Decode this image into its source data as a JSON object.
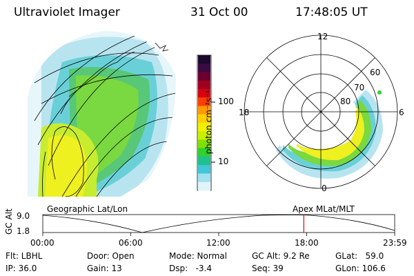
{
  "header": {
    "instrument": "Ultraviolet Imager",
    "date": "31 Oct 00",
    "time": "17:48:05 UT"
  },
  "colorbar": {
    "unit": "photon cm⁻²s⁻¹",
    "ticks": [
      "100",
      "10"
    ],
    "colors": [
      "#1a0a2e",
      "#3a0a40",
      "#6a0030",
      "#a00020",
      "#d80010",
      "#ff4000",
      "#ff9a00",
      "#ffd000",
      "#f0f000",
      "#c8f000",
      "#80e000",
      "#30d030",
      "#20c090",
      "#40c8d8",
      "#a0e0f0",
      "#e0f4fa"
    ]
  },
  "left_panel": {
    "label": "Geographic Lat/Lon"
  },
  "right_panel": {
    "label": "Apex  MLat/MLT",
    "mlt_labels": {
      "top": "12",
      "left": "18",
      "right": "6",
      "bottom": "0"
    },
    "lat_labels": [
      "60",
      "70",
      "80"
    ]
  },
  "timeline": {
    "ylabel": "GC Alt",
    "yticks": [
      "9.0",
      "1.8"
    ],
    "xticks": [
      "00:00",
      "06:00",
      "12:00",
      "18:00",
      "23:59"
    ],
    "marker_fraction": 0.7417,
    "marker_color": "#dd0000"
  },
  "info": {
    "flt": "Flt: LBHL",
    "ip": "IP: 36.0",
    "door": "Door: Open",
    "gain": "Gain: 13",
    "mode": "Mode: Normal",
    "dsp": "Dsp:   -3.4",
    "gcalt": "GC Alt: 9.2 Re",
    "seq": "Seq: 39",
    "glat": "GLat:   59.0",
    "glon": "GLon: 106.6"
  }
}
